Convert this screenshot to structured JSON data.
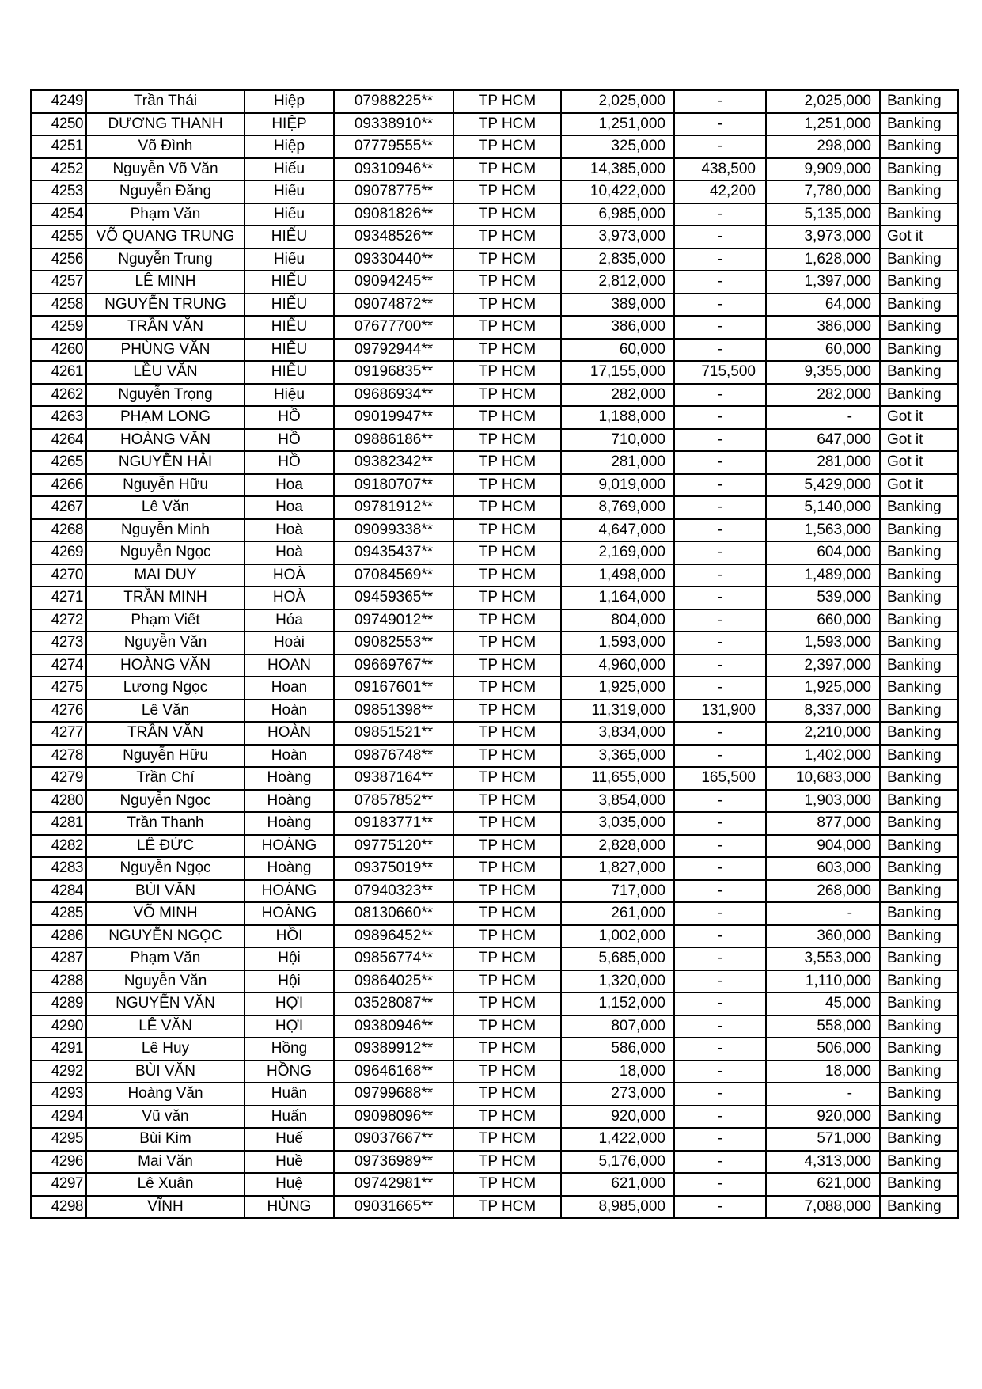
{
  "table": {
    "rows": [
      [
        "4249",
        "Trần  Thái",
        "Hiệp",
        "07988225**",
        "TP HCM",
        "2,025,000",
        "-",
        "2,025,000",
        "Banking"
      ],
      [
        "4250",
        "DƯƠNG THANH",
        "HIỆP",
        "09338910**",
        "TP HCM",
        "1,251,000",
        "-",
        "1,251,000",
        "Banking"
      ],
      [
        "4251",
        "Võ Đình",
        "Hiệp",
        "07779555**",
        "TP HCM",
        "325,000",
        "-",
        "298,000",
        "Banking"
      ],
      [
        "4252",
        "Nguyễn Võ Văn",
        "Hiếu",
        "09310946**",
        "TP HCM",
        "14,385,000",
        "438,500",
        "9,909,000",
        "Banking"
      ],
      [
        "4253",
        "Nguyễn Đăng",
        "Hiếu",
        "09078775**",
        "TP HCM",
        "10,422,000",
        "42,200",
        "7,780,000",
        "Banking"
      ],
      [
        "4254",
        "Phạm Văn",
        "Hiếu",
        "09081826**",
        "TP HCM",
        "6,985,000",
        "-",
        "5,135,000",
        "Banking"
      ],
      [
        "4255",
        "VÕ QUANG TRUNG",
        "HIẾU",
        "09348526**",
        "TP HCM",
        "3,973,000",
        "-",
        "3,973,000",
        "Got it"
      ],
      [
        "4256",
        "Nguyễn Trung",
        "Hiếu",
        "09330440**",
        "TP HCM",
        "2,835,000",
        "-",
        "1,628,000",
        "Banking"
      ],
      [
        "4257",
        "LÊ MINH",
        "HIẾU",
        "09094245**",
        "TP HCM",
        "2,812,000",
        "-",
        "1,397,000",
        "Banking"
      ],
      [
        "4258",
        "NGUYỄN TRUNG",
        "HIẾU",
        "09074872**",
        "TP HCM",
        "389,000",
        "-",
        "64,000",
        "Banking"
      ],
      [
        "4259",
        "TRẦN VĂN",
        "HIẾU",
        "07677700**",
        "TP HCM",
        "386,000",
        "-",
        "386,000",
        "Banking"
      ],
      [
        "4260",
        "PHÙNG VĂN",
        "HIẾU",
        "09792944**",
        "TP HCM",
        "60,000",
        "-",
        "60,000",
        "Banking"
      ],
      [
        "4261",
        "LỀU VĂN",
        "HIẾU",
        "09196835**",
        "TP HCM",
        "17,155,000",
        "715,500",
        "9,355,000",
        "Banking"
      ],
      [
        "4262",
        "Nguyễn Trọng",
        "Hiệu",
        "09686934**",
        "TP HCM",
        "282,000",
        "-",
        "282,000",
        "Banking"
      ],
      [
        "4263",
        "PHẠM LONG",
        "HỒ",
        "09019947**",
        "TP HCM",
        "1,188,000",
        "-",
        "-",
        "Got it"
      ],
      [
        "4264",
        "HOÀNG VĂN",
        "HỒ",
        "09886186**",
        "TP HCM",
        "710,000",
        "-",
        "647,000",
        "Got it"
      ],
      [
        "4265",
        "NGUYỄN HẢI",
        "HỒ",
        "09382342**",
        "TP HCM",
        "281,000",
        "-",
        "281,000",
        "Got it"
      ],
      [
        "4266",
        "Nguyễn Hữu",
        "Hoa",
        "09180707**",
        "TP HCM",
        "9,019,000",
        "-",
        "5,429,000",
        "Got it"
      ],
      [
        "4267",
        "Lê Văn",
        "Hoa",
        "09781912**",
        "TP HCM",
        "8,769,000",
        "-",
        "5,140,000",
        "Banking"
      ],
      [
        "4268",
        "Nguyễn Minh",
        "Hoà",
        "09099338**",
        "TP HCM",
        "4,647,000",
        "-",
        "1,563,000",
        "Banking"
      ],
      [
        "4269",
        "Nguyễn Ngọc",
        "Hoà",
        "09435437**",
        "TP HCM",
        "2,169,000",
        "-",
        "604,000",
        "Banking"
      ],
      [
        "4270",
        "MAI DUY",
        "HOÀ",
        "07084569**",
        "TP HCM",
        "1,498,000",
        "-",
        "1,489,000",
        "Banking"
      ],
      [
        "4271",
        "TRẦN MINH",
        "HOÀ",
        "09459365**",
        "TP HCM",
        "1,164,000",
        "-",
        "539,000",
        "Banking"
      ],
      [
        "4272",
        "Phạm Viết",
        "Hóa",
        "09749012**",
        "TP HCM",
        "804,000",
        "-",
        "660,000",
        "Banking"
      ],
      [
        "4273",
        "Nguyễn Văn",
        "Hoài",
        "09082553**",
        "TP HCM",
        "1,593,000",
        "-",
        "1,593,000",
        "Banking"
      ],
      [
        "4274",
        "HOÀNG VĂN",
        "HOAN",
        "09669767**",
        "TP HCM",
        "4,960,000",
        "-",
        "2,397,000",
        "Banking"
      ],
      [
        "4275",
        "Lương Ngọc",
        "Hoan",
        "09167601**",
        "TP HCM",
        "1,925,000",
        "-",
        "1,925,000",
        "Banking"
      ],
      [
        "4276",
        "Lê Văn",
        "Hoàn",
        "09851398**",
        "TP HCM",
        "11,319,000",
        "131,900",
        "8,337,000",
        "Banking"
      ],
      [
        "4277",
        "TRẦN VĂN",
        "HOÀN",
        "09851521**",
        "TP HCM",
        "3,834,000",
        "-",
        "2,210,000",
        "Banking"
      ],
      [
        "4278",
        "Nguyễn Hữu",
        "Hoàn",
        "09876748**",
        "TP HCM",
        "3,365,000",
        "-",
        "1,402,000",
        "Banking"
      ],
      [
        "4279",
        "Trần Chí",
        "Hoàng",
        "09387164**",
        "TP HCM",
        "11,655,000",
        "165,500",
        "10,683,000",
        "Banking"
      ],
      [
        "4280",
        "Nguyễn Ngọc",
        "Hoàng",
        "07857852**",
        "TP HCM",
        "3,854,000",
        "-",
        "1,903,000",
        "Banking"
      ],
      [
        "4281",
        "Trần Thanh",
        "Hoàng",
        "09183771**",
        "TP HCM",
        "3,035,000",
        "-",
        "877,000",
        "Banking"
      ],
      [
        "4282",
        "LÊ ĐỨC",
        "HOÀNG",
        "09775120**",
        "TP HCM",
        "2,828,000",
        "-",
        "904,000",
        "Banking"
      ],
      [
        "4283",
        "Nguyễn Ngọc",
        "Hoàng",
        "09375019**",
        "TP HCM",
        "1,827,000",
        "-",
        "603,000",
        "Banking"
      ],
      [
        "4284",
        "BÙI VĂN",
        "HOÀNG",
        "07940323**",
        "TP HCM",
        "717,000",
        "-",
        "268,000",
        "Banking"
      ],
      [
        "4285",
        "VÕ MINH",
        "HOÀNG",
        "08130660**",
        "TP HCM",
        "261,000",
        "-",
        "-",
        "Banking"
      ],
      [
        "4286",
        "NGUYỄN NGỌC",
        "HỒI",
        "09896452**",
        "TP HCM",
        "1,002,000",
        "-",
        "360,000",
        "Banking"
      ],
      [
        "4287",
        "Phạm Văn",
        "Hội",
        "09856774**",
        "TP HCM",
        "5,685,000",
        "-",
        "3,553,000",
        "Banking"
      ],
      [
        "4288",
        "Nguyễn Văn",
        "Hội",
        "09864025**",
        "TP HCM",
        "1,320,000",
        "-",
        "1,110,000",
        "Banking"
      ],
      [
        "4289",
        "NGUYỄN VĂN",
        "HỢI",
        "03528087**",
        "TP HCM",
        "1,152,000",
        "-",
        "45,000",
        "Banking"
      ],
      [
        "4290",
        "LÊ VĂN",
        "HỢI",
        "09380946**",
        "TP HCM",
        "807,000",
        "-",
        "558,000",
        "Banking"
      ],
      [
        "4291",
        "Lê Huy",
        "Hồng",
        "09389912**",
        "TP HCM",
        "586,000",
        "-",
        "506,000",
        "Banking"
      ],
      [
        "4292",
        "BÙI VĂN",
        "HỒNG",
        "09646168**",
        "TP HCM",
        "18,000",
        "-",
        "18,000",
        "Banking"
      ],
      [
        "4293",
        "Hoàng Văn",
        "Huân",
        "09799688**",
        "TP HCM",
        "273,000",
        "-",
        "-",
        "Banking"
      ],
      [
        "4294",
        "Vũ văn",
        "Huấn",
        "09098096**",
        "TP HCM",
        "920,000",
        "-",
        "920,000",
        "Banking"
      ],
      [
        "4295",
        "Bùi Kim",
        "Huế",
        "09037667**",
        "TP HCM",
        "1,422,000",
        "-",
        "571,000",
        "Banking"
      ],
      [
        "4296",
        "Mai Văn",
        "Huề",
        "09736989**",
        "TP HCM",
        "5,176,000",
        "-",
        "4,313,000",
        "Banking"
      ],
      [
        "4297",
        "Lê Xuân",
        "Huệ",
        "09742981**",
        "TP HCM",
        "621,000",
        "-",
        "621,000",
        "Banking"
      ],
      [
        "4298",
        "VĨNH",
        "HÙNG",
        "09031665**",
        "TP HCM",
        "8,985,000",
        "-",
        "7,088,000",
        "Banking"
      ]
    ]
  }
}
